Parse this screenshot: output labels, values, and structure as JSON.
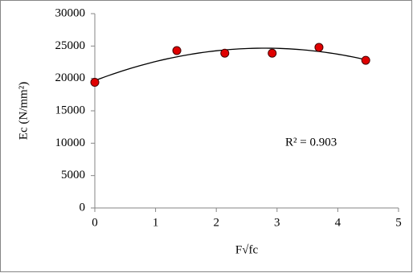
{
  "chart_data": {
    "type": "scatter",
    "x_label": "F√fc",
    "y_label": "Ec (N/mm²)",
    "annotation": "R² = 0.903",
    "x": [
      0,
      1.35,
      2.14,
      2.92,
      3.69,
      4.46
    ],
    "values": [
      19400,
      24300,
      23900,
      23900,
      24800,
      22800
    ],
    "color": "#e00000",
    "trendline": "polynomial",
    "xlim": [
      0,
      5
    ],
    "xticks": [
      0,
      1,
      2,
      3,
      4,
      5
    ],
    "ylim": [
      0,
      30000
    ],
    "yticks": [
      0,
      5000,
      10000,
      15000,
      20000,
      25000,
      30000
    ],
    "grid": false
  }
}
